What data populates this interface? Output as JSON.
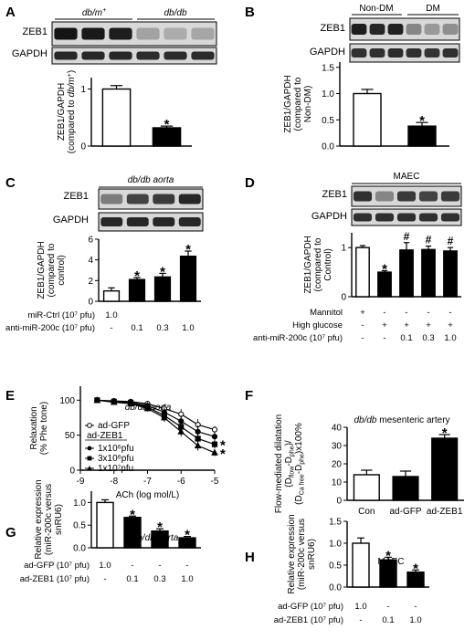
{
  "chart_data": [
    {
      "panel": "A",
      "type": "bar",
      "blot": {
        "groups": [
          "db/m+",
          "db/db"
        ],
        "rows": [
          "ZEB1",
          "GAPDH"
        ]
      },
      "categories": [
        "db/m+",
        "db/db"
      ],
      "values": [
        1.0,
        0.32
      ],
      "errors": [
        0.06,
        0.03
      ],
      "fills": [
        "#ffffff",
        "#000000"
      ],
      "sig": [
        "",
        "*"
      ],
      "ylabel": [
        "ZEB1/GAPDH",
        "(compared to db/m+)"
      ],
      "ylim": [
        0,
        1.2
      ],
      "yticks": [
        "0",
        "1"
      ]
    },
    {
      "panel": "B",
      "type": "bar",
      "blot": {
        "groups": [
          "Non-DM",
          "DM"
        ],
        "rows": [
          "ZEB1",
          "GAPDH"
        ]
      },
      "categories": [
        "Non-DM",
        "DM"
      ],
      "values": [
        1.0,
        0.38
      ],
      "errors": [
        0.08,
        0.07
      ],
      "fills": [
        "#ffffff",
        "#000000"
      ],
      "sig": [
        "",
        "*"
      ],
      "ylabel": [
        "ZEB1/GAPDH",
        "(compared to",
        "Non-DM)"
      ],
      "ylim": [
        0,
        1.6
      ],
      "yticks": [
        "0.0",
        "0.5",
        "1.0",
        "1.5"
      ]
    },
    {
      "panel": "C",
      "type": "bar",
      "title": "db/db aorta",
      "blot": {
        "rows": [
          "ZEB1",
          "GAPDH"
        ]
      },
      "values": [
        1.0,
        2.1,
        2.35,
        4.35
      ],
      "errors": [
        0.3,
        0.2,
        0.35,
        0.5
      ],
      "fills": [
        "#ffffff",
        "#000000",
        "#000000",
        "#000000"
      ],
      "sig": [
        "",
        "*",
        "*",
        "*"
      ],
      "ylabel": [
        "ZEB1/GAPDH",
        "(compared to",
        "control)"
      ],
      "ylim": [
        0,
        6
      ],
      "yticks": [
        "0",
        "2",
        "4",
        "6"
      ],
      "conditions": [
        {
          "label": "miR-Ctrl (10⁷ pfu)",
          "values": [
            "1.0",
            "",
            "",
            ""
          ]
        },
        {
          "label": "anti-miR-200c (10⁷ pfu)",
          "values": [
            "-",
            "0.1",
            "0.3",
            "1.0"
          ]
        }
      ]
    },
    {
      "panel": "D",
      "type": "bar",
      "title": "MAEC",
      "blot": {
        "rows": [
          "ZEB1",
          "GAPDH"
        ]
      },
      "values": [
        1.0,
        0.5,
        0.95,
        0.96,
        0.93
      ],
      "errors": [
        0.04,
        0.03,
        0.15,
        0.07,
        0.07
      ],
      "fills": [
        "#ffffff",
        "#000000",
        "#000000",
        "#000000",
        "#000000"
      ],
      "sig": [
        "",
        "*",
        "#",
        "#",
        "#"
      ],
      "ylabel": [
        "ZEB1/GAPDH",
        "(compared to",
        "Control)"
      ],
      "ylim": [
        0,
        1.3
      ],
      "yticks": [
        "0",
        "1"
      ],
      "conditions": [
        {
          "label": "Mannitol",
          "values": [
            "+",
            "-",
            "-",
            "-",
            "-"
          ]
        },
        {
          "label": "High glucose",
          "values": [
            "-",
            "+",
            "+",
            "+",
            "+"
          ]
        },
        {
          "label": "anti-miR-200c (10⁷ pfu)",
          "values": [
            "-",
            "-",
            "0.1",
            "0.3",
            "1.0"
          ]
        }
      ]
    },
    {
      "panel": "E",
      "type": "line",
      "title": "db/db aorta",
      "x": [
        -8.5,
        -8,
        -7.5,
        -7,
        -6.5,
        -6,
        -5.5,
        -5
      ],
      "series": [
        {
          "name": "ad-GFP",
          "marker": "open",
          "values": [
            100,
            99,
            98,
            95,
            88,
            80,
            65,
            58
          ],
          "errors": [
            0,
            2,
            3,
            4,
            6,
            7,
            8,
            5
          ]
        },
        {
          "name": "1x10⁶pfu",
          "marker": "filled",
          "values": [
            100,
            98,
            97,
            92,
            83,
            70,
            55,
            48
          ],
          "errors": [
            0,
            2,
            3,
            5,
            7,
            8,
            9,
            6
          ]
        },
        {
          "name": "3x10⁶pfu",
          "marker": "filled",
          "values": [
            100,
            98,
            96,
            90,
            78,
            62,
            45,
            37
          ],
          "errors": [
            0,
            2,
            3,
            5,
            6,
            7,
            8,
            6
          ]
        },
        {
          "name": "1x10⁷pfu",
          "marker": "filled",
          "values": [
            100,
            97,
            95,
            88,
            75,
            55,
            35,
            25
          ],
          "errors": [
            0,
            2,
            3,
            4,
            6,
            7,
            7,
            5
          ]
        }
      ],
      "legend_header": "ad-ZEB1",
      "sig_series": [
        "3x10⁶pfu",
        "1x10⁷pfu"
      ],
      "sig": "*",
      "xlabel": "ACh (log mol/L)",
      "ylabel": [
        "Relaxation",
        "(% Phe tone)"
      ],
      "xlim": [
        -9,
        -5
      ],
      "ylim": [
        0,
        120
      ],
      "xticks": [
        "-9",
        "-8",
        "-7",
        "-6",
        "-5"
      ],
      "yticks": [
        "0",
        "50",
        "100"
      ]
    },
    {
      "panel": "F",
      "type": "bar",
      "title": "db/db mesenteric artery",
      "categories": [
        "Con",
        "ad-GFP",
        "ad-ZEB1"
      ],
      "values": [
        14,
        13,
        34
      ],
      "errors": [
        2.5,
        3,
        2
      ],
      "fills": [
        "#ffffff",
        "#000000",
        "#000000"
      ],
      "sig": [
        "",
        "",
        "*"
      ],
      "ylabel": [
        "Flow-mediated dilatation",
        "(Dflow-Dphe)/",
        "(DCa free-Dphe)x100%"
      ],
      "ylim": [
        0,
        40
      ],
      "yticks": [
        "0",
        "10",
        "20",
        "30",
        "40"
      ]
    },
    {
      "panel": "G",
      "type": "bar",
      "title": "db/db aorta",
      "values": [
        1.0,
        0.67,
        0.37,
        0.22
      ],
      "errors": [
        0.06,
        0.03,
        0.05,
        0.03
      ],
      "fills": [
        "#ffffff",
        "#000000",
        "#000000",
        "#000000"
      ],
      "sig": [
        "",
        "*",
        "*",
        "*"
      ],
      "ylabel": [
        "Relative expression",
        "(miR-200c versus",
        "snRU6)"
      ],
      "ylim": [
        0,
        1.25
      ],
      "yticks": [
        "0.0",
        "0.5",
        "1.0"
      ],
      "conditions": [
        {
          "label": "ad-GFP (10⁷ pfu)",
          "values": [
            "1.0",
            "-",
            "-",
            "-"
          ]
        },
        {
          "label": "ad-ZEB1 (10⁷ pfu)",
          "values": [
            "-",
            "0.1",
            "0.3",
            "1.0"
          ]
        }
      ]
    },
    {
      "panel": "H",
      "type": "bar",
      "title": "MAEC",
      "values": [
        1.0,
        0.62,
        0.34
      ],
      "errors": [
        0.12,
        0.06,
        0.05
      ],
      "fills": [
        "#ffffff",
        "#000000",
        "#000000"
      ],
      "sig": [
        "",
        "*",
        "*"
      ],
      "ylabel": [
        "Relative expression",
        "(miR-200c versus",
        "snRU6)"
      ],
      "ylim": [
        0,
        1.5
      ],
      "yticks": [
        "0.0",
        "0.5",
        "1.0",
        "1.5"
      ],
      "conditions": [
        {
          "label": "ad-GFP (10⁷ pfu)",
          "values": [
            "1.0",
            "-",
            "-"
          ]
        },
        {
          "label": "ad-ZEB1 (10⁷ pfu)",
          "values": [
            "-",
            "0.1",
            "1.0"
          ]
        }
      ]
    }
  ]
}
